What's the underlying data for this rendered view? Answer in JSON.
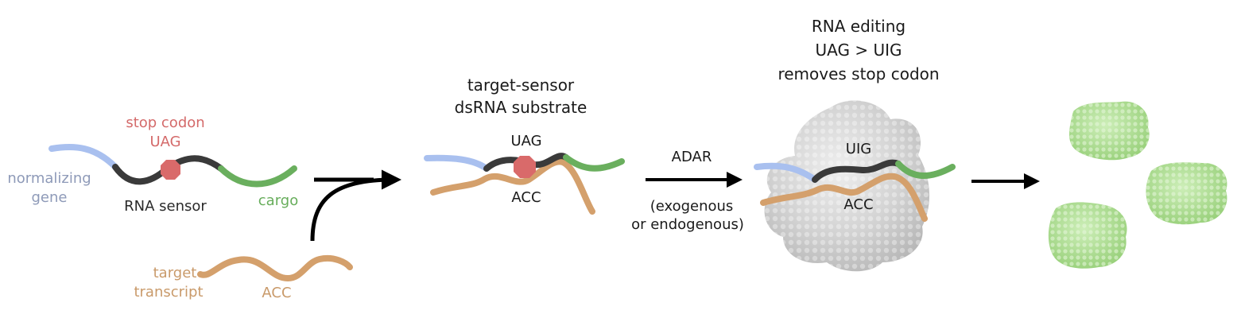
{
  "panel1": {
    "stop_label_1": "stop codon",
    "stop_label_2": "UAG",
    "normalizing_1": "normalizing",
    "normalizing_2": "gene",
    "sensor_label": "RNA sensor",
    "cargo_label": "cargo",
    "target_1": "target",
    "target_2": "transcript",
    "target_codon": "ACC"
  },
  "panel2": {
    "title_1": "target-sensor",
    "title_2": "dsRNA substrate",
    "top_codon": "UAG",
    "bottom_codon": "ACC"
  },
  "arrow_labels": {
    "enzyme": "ADAR",
    "source_1": "(exogenous",
    "source_2": "or endogenous)"
  },
  "panel3": {
    "title_1": "RNA editing",
    "title_2": "UAG > UIG",
    "title_3": "removes stop codon",
    "top_codon": "UIG",
    "bottom_codon": "ACC"
  },
  "colors": {
    "normalizing": "#a9c0ef",
    "sensor": "#3a3a3a",
    "cargo": "#6aaf5e",
    "target": "#d4a06c",
    "stop_codon": "#d96a6a",
    "adar": "#c8c8c8",
    "protein": "#a8dc8c"
  }
}
